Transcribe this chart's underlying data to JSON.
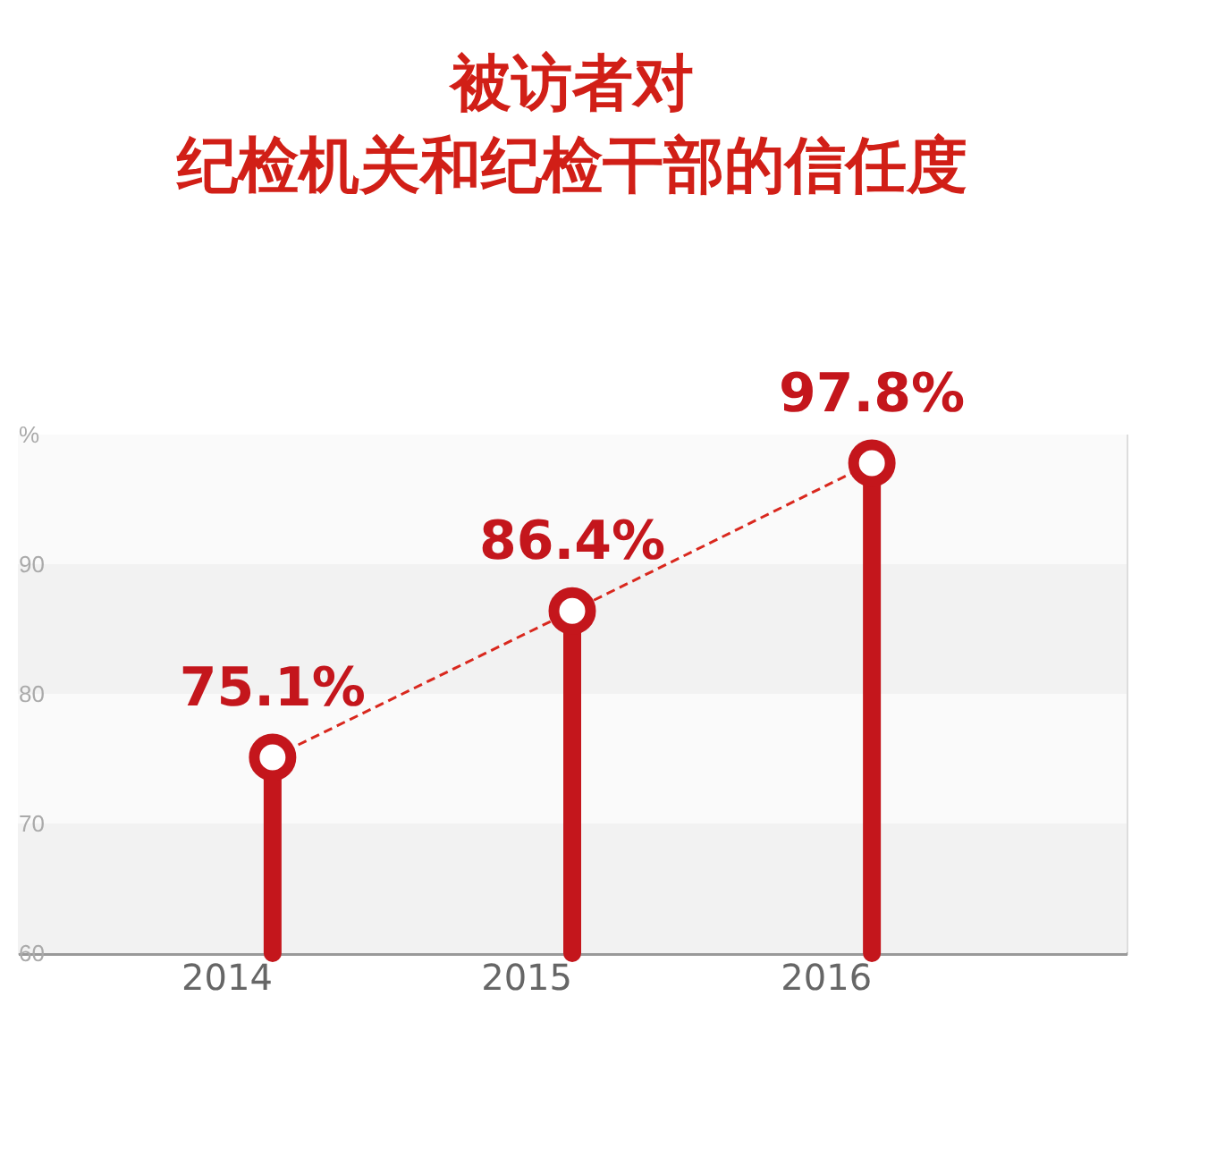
{
  "chart_data": {
    "type": "lollipop",
    "title": [
      "被访者对",
      "纪检机关和纪检干部的信任度"
    ],
    "categories": [
      "2014",
      "2015",
      "2016"
    ],
    "series": [
      {
        "color": "#c4161c",
        "values": [
          75.1,
          86.4,
          97.8
        ],
        "value_labels": [
          "75.1%",
          "86.4%",
          "97.8%"
        ]
      },
      {
        "type": "line",
        "line_style": "dashed",
        "color": "#d9281e",
        "values": [
          75.1,
          86.4,
          97.8
        ]
      }
    ],
    "ylim": [
      60,
      100
    ],
    "yticks": [
      60,
      70,
      80,
      90,
      {
        "value": 100,
        "label": "%"
      }
    ],
    "bands": [
      {
        "axis": "y",
        "from": 60,
        "to": 70,
        "color": "#f2f2f2"
      },
      {
        "axis": "y",
        "from": 70,
        "to": 80,
        "color": "#fafafa"
      },
      {
        "axis": "y",
        "from": 80,
        "to": 90,
        "color": "#f2f2f2"
      },
      {
        "axis": "y",
        "from": 90,
        "to": 100,
        "color": "#fafafa"
      }
    ],
    "grid": false
  }
}
